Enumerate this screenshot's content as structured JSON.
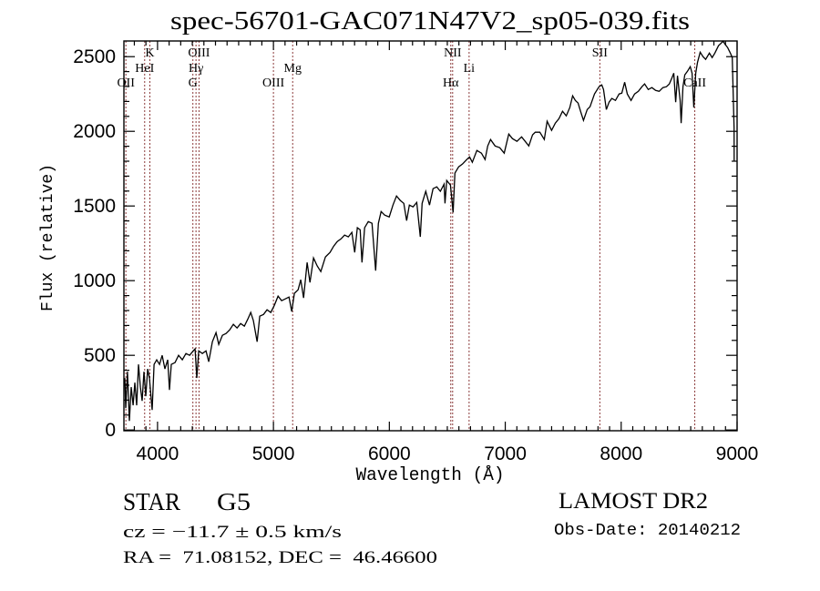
{
  "chart_data": {
    "type": "line",
    "title": "spec-56701-GAC071N47V2_sp05-039.fits",
    "xlabel": "Wavelength (Å)",
    "ylabel": "Flux (relative)",
    "xlim": [
      3710,
      9000
    ],
    "ylim": [
      -5,
      2605
    ],
    "xticks": [
      4000,
      5000,
      6000,
      7000,
      8000,
      9000
    ],
    "xtick_labels": [
      "4000",
      "5000",
      "6000",
      "7000",
      "8000",
      "9000"
    ],
    "yticks": [
      0,
      500,
      1000,
      1500,
      2000,
      2500
    ],
    "ytick_labels": [
      "0",
      "500",
      "1000",
      "1500",
      "2000",
      "2500"
    ],
    "x_minor_step": 100,
    "y_minor_step": 100,
    "grid": false,
    "legend": "none",
    "line_marker_color": "#8b3a3a",
    "spectral_lines": [
      {
        "label": "OII",
        "wavelength": 3727
      },
      {
        "label": "HeI",
        "wavelength": 3889
      },
      {
        "label": "K",
        "wavelength": 3934
      },
      {
        "label": "G",
        "wavelength": 4305
      },
      {
        "label": "Hγ",
        "wavelength": 4332
      },
      {
        "label": "OIII",
        "wavelength": 4358
      },
      {
        "label": "OIII",
        "wavelength": 5000
      },
      {
        "label": "Mg",
        "wavelength": 5166
      },
      {
        "label": "Hα",
        "wavelength": 6530
      },
      {
        "label": "NII",
        "wavelength": 6546
      },
      {
        "label": "Li",
        "wavelength": 6688
      },
      {
        "label": "SII",
        "wavelength": 7816
      },
      {
        "label": "CaII",
        "wavelength": 8635
      }
    ],
    "series": [
      {
        "name": "spectrum",
        "color": "#000000",
        "points": [
          [
            3718,
            348
          ],
          [
            3726,
            146
          ],
          [
            3741,
            390
          ],
          [
            3757,
            61
          ],
          [
            3773,
            287
          ],
          [
            3789,
            165
          ],
          [
            3804,
            317
          ],
          [
            3820,
            165
          ],
          [
            3836,
            439
          ],
          [
            3852,
            287
          ],
          [
            3867,
            195
          ],
          [
            3883,
            390
          ],
          [
            3899,
            226
          ],
          [
            3915,
            409
          ],
          [
            3930,
            348
          ],
          [
            3954,
            134
          ],
          [
            3970,
            439
          ],
          [
            3993,
            470
          ],
          [
            4017,
            439
          ],
          [
            4040,
            500
          ],
          [
            4064,
            409
          ],
          [
            4088,
            470
          ],
          [
            4103,
            268
          ],
          [
            4119,
            439
          ],
          [
            4151,
            451
          ],
          [
            4182,
            500
          ],
          [
            4214,
            470
          ],
          [
            4245,
            512
          ],
          [
            4277,
            500
          ],
          [
            4308,
            530
          ],
          [
            4324,
            543
          ],
          [
            4339,
            348
          ],
          [
            4355,
            530
          ],
          [
            4387,
            512
          ],
          [
            4418,
            530
          ],
          [
            4442,
            457
          ],
          [
            4473,
            591
          ],
          [
            4505,
            652
          ],
          [
            4528,
            573
          ],
          [
            4560,
            634
          ],
          [
            4591,
            646
          ],
          [
            4623,
            671
          ],
          [
            4654,
            707
          ],
          [
            4686,
            683
          ],
          [
            4717,
            713
          ],
          [
            4749,
            695
          ],
          [
            4780,
            744
          ],
          [
            4804,
            787
          ],
          [
            4827,
            732
          ],
          [
            4859,
            591
          ],
          [
            4882,
            762
          ],
          [
            4914,
            774
          ],
          [
            4945,
            805
          ],
          [
            4977,
            787
          ],
          [
            5008,
            835
          ],
          [
            5040,
            896
          ],
          [
            5071,
            866
          ],
          [
            5103,
            878
          ],
          [
            5134,
            890
          ],
          [
            5158,
            793
          ],
          [
            5181,
            915
          ],
          [
            5213,
            939
          ],
          [
            5236,
            1006
          ],
          [
            5260,
            884
          ],
          [
            5291,
            1122
          ],
          [
            5315,
            988
          ],
          [
            5346,
            1152
          ],
          [
            5378,
            1098
          ],
          [
            5409,
            1061
          ],
          [
            5449,
            1159
          ],
          [
            5488,
            1189
          ],
          [
            5520,
            1232
          ],
          [
            5551,
            1262
          ],
          [
            5583,
            1280
          ],
          [
            5614,
            1305
          ],
          [
            5646,
            1293
          ],
          [
            5677,
            1323
          ],
          [
            5701,
            1189
          ],
          [
            5724,
            1354
          ],
          [
            5748,
            1341
          ],
          [
            5764,
            1122
          ],
          [
            5787,
            1354
          ],
          [
            5818,
            1396
          ],
          [
            5850,
            1384
          ],
          [
            5882,
            1067
          ],
          [
            5905,
            1384
          ],
          [
            5929,
            1463
          ],
          [
            5960,
            1439
          ],
          [
            5999,
            1427
          ],
          [
            6031,
            1506
          ],
          [
            6062,
            1567
          ],
          [
            6094,
            1537
          ],
          [
            6125,
            1518
          ],
          [
            6149,
            1402
          ],
          [
            6173,
            1506
          ],
          [
            6204,
            1494
          ],
          [
            6236,
            1524
          ],
          [
            6267,
            1293
          ],
          [
            6283,
            1518
          ],
          [
            6314,
            1598
          ],
          [
            6346,
            1506
          ],
          [
            6377,
            1616
          ],
          [
            6409,
            1628
          ],
          [
            6440,
            1598
          ],
          [
            6472,
            1646
          ],
          [
            6480,
            1518
          ],
          [
            6495,
            1671
          ],
          [
            6527,
            1640
          ],
          [
            6550,
            1457
          ],
          [
            6566,
            1720
          ],
          [
            6598,
            1762
          ],
          [
            6629,
            1780
          ],
          [
            6668,
            1811
          ],
          [
            6692,
            1829
          ],
          [
            6716,
            1793
          ],
          [
            6755,
            1872
          ],
          [
            6794,
            1854
          ],
          [
            6826,
            1811
          ],
          [
            6849,
            1902
          ],
          [
            6873,
            1945
          ],
          [
            6912,
            1902
          ],
          [
            6952,
            1890
          ],
          [
            6991,
            1854
          ],
          [
            7030,
            1982
          ],
          [
            7062,
            1951
          ],
          [
            7101,
            1933
          ],
          [
            7141,
            1963
          ],
          [
            7172,
            1933
          ],
          [
            7203,
            1902
          ],
          [
            7235,
            1976
          ],
          [
            7259,
            1994
          ],
          [
            7298,
            1994
          ],
          [
            7337,
            1945
          ],
          [
            7361,
            2067
          ],
          [
            7400,
            2006
          ],
          [
            7432,
            2055
          ],
          [
            7463,
            2085
          ],
          [
            7494,
            2134
          ],
          [
            7526,
            2104
          ],
          [
            7557,
            2159
          ],
          [
            7581,
            2238
          ],
          [
            7605,
            2207
          ],
          [
            7628,
            2189
          ],
          [
            7652,
            2128
          ],
          [
            7675,
            2073
          ],
          [
            7707,
            2146
          ],
          [
            7731,
            2165
          ],
          [
            7770,
            2250
          ],
          [
            7809,
            2299
          ],
          [
            7833,
            2311
          ],
          [
            7848,
            2280
          ],
          [
            7872,
            2146
          ],
          [
            7896,
            2195
          ],
          [
            7919,
            2220
          ],
          [
            7951,
            2207
          ],
          [
            7982,
            2250
          ],
          [
            8006,
            2256
          ],
          [
            8030,
            2329
          ],
          [
            8053,
            2250
          ],
          [
            8085,
            2207
          ],
          [
            8116,
            2250
          ],
          [
            8148,
            2268
          ],
          [
            8179,
            2299
          ],
          [
            8202,
            2317
          ],
          [
            8234,
            2280
          ],
          [
            8265,
            2293
          ],
          [
            8297,
            2274
          ],
          [
            8328,
            2268
          ],
          [
            8360,
            2293
          ],
          [
            8391,
            2299
          ],
          [
            8415,
            2317
          ],
          [
            8439,
            2360
          ],
          [
            8454,
            2390
          ],
          [
            8470,
            2195
          ],
          [
            8486,
            2372
          ],
          [
            8509,
            2207
          ],
          [
            8517,
            2055
          ],
          [
            8533,
            2299
          ],
          [
            8549,
            2378
          ],
          [
            8572,
            2402
          ],
          [
            8596,
            2433
          ],
          [
            8612,
            2390
          ],
          [
            8627,
            2159
          ],
          [
            8643,
            2390
          ],
          [
            8659,
            2463
          ],
          [
            8682,
            2530
          ],
          [
            8706,
            2500
          ],
          [
            8729,
            2482
          ],
          [
            8761,
            2524
          ],
          [
            8785,
            2494
          ],
          [
            8808,
            2524
          ],
          [
            8840,
            2573
          ],
          [
            8863,
            2591
          ],
          [
            8879,
            2604
          ],
          [
            8895,
            2585
          ],
          [
            8918,
            2561
          ],
          [
            8942,
            2524
          ],
          [
            8958,
            2494
          ],
          [
            8974,
            2024
          ],
          [
            8975,
            1799
          ]
        ]
      }
    ]
  },
  "info": {
    "object_class": "STAR",
    "subclass": "G5",
    "redshift_text": "cz = −11.7 ± 0.5 km/s",
    "coords_text": "RA =  71.08152, DEC =  46.46600",
    "survey": "LAMOST DR2",
    "obs_date_text": "Obs-Date: 20140212"
  }
}
